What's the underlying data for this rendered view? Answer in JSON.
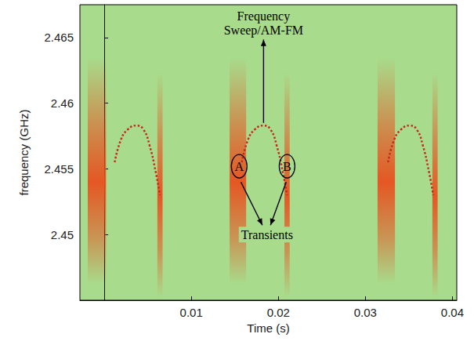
{
  "chart_data": {
    "type": "spectrogram",
    "x_label": "Time (s)",
    "y_label": "frequency (GHz)",
    "xlim": [
      -0.0028,
      0.0405
    ],
    "xticks": [
      0.01,
      0.02,
      0.03,
      0.04
    ],
    "ylim": [
      2.445,
      2.4675
    ],
    "yticks": [
      2.45,
      2.455,
      2.46,
      2.465
    ],
    "grid": false,
    "series": [
      {
        "type": "line",
        "color": "#c8281e",
        "line_style": "dotted",
        "marker": "none",
        "x": [
          0.0012,
          0.0019,
          0.0027,
          0.0037,
          0.0045,
          0.0052,
          0.0059,
          0.0064
        ],
        "values": [
          2.4555,
          2.4572,
          2.458,
          2.4583,
          2.458,
          2.4568,
          2.4548,
          2.453
        ]
      },
      {
        "type": "line",
        "color": "#c8281e",
        "line_style": "dotted",
        "marker": "none",
        "x": [
          0.0158,
          0.0165,
          0.0173,
          0.0183,
          0.0191,
          0.0198,
          0.0205,
          0.021
        ],
        "values": [
          2.4555,
          2.4572,
          2.458,
          2.4583,
          2.458,
          2.4568,
          2.4548,
          2.453
        ]
      },
      {
        "type": "line",
        "color": "#c8281e",
        "line_style": "dotted",
        "marker": "none",
        "x": [
          0.0326,
          0.0333,
          0.0341,
          0.0351,
          0.0359,
          0.0366,
          0.0373,
          0.0378
        ],
        "values": [
          2.4555,
          2.4572,
          2.458,
          2.4583,
          2.458,
          2.4568,
          2.4548,
          2.453
        ]
      }
    ],
    "transients": [
      {
        "x": [
          -0.0019,
          0.0002
        ],
        "y": [
          2.4462,
          2.4635
        ],
        "color": "#e8501e"
      },
      {
        "x": [
          0.0061,
          0.0067
        ],
        "y": [
          2.4452,
          2.4624
        ],
        "color": "#e8501e"
      },
      {
        "x": [
          0.0144,
          0.0163
        ],
        "y": [
          2.4462,
          2.4635
        ],
        "color": "#e8501e"
      },
      {
        "x": [
          0.0207,
          0.0213
        ],
        "y": [
          2.4452,
          2.4624
        ],
        "color": "#e8501e"
      },
      {
        "x": [
          0.0314,
          0.0334
        ],
        "y": [
          2.4462,
          2.4635
        ],
        "color": "#e8501e"
      },
      {
        "x": [
          0.0377,
          0.0383
        ],
        "y": [
          2.4452,
          2.4624
        ],
        "color": "#e8501e"
      }
    ],
    "annotations": [
      {
        "text": "Frequency\nSweep/AM-FM",
        "x": 0.0183,
        "y": 2.4661,
        "arrow_from": [
          [
            0.0183,
            2.4585
          ]
        ]
      },
      {
        "text": "Transients",
        "x": 0.0187,
        "y": 2.45,
        "arrow_from": [
          [
            0.0157,
            2.454
          ],
          [
            0.0209,
            2.454
          ]
        ]
      },
      {
        "text": "A",
        "x": 0.0155,
        "y": 2.4552,
        "marker": "circle"
      },
      {
        "text": "B",
        "x": 0.021,
        "y": 2.4552,
        "marker": "circle"
      }
    ]
  }
}
